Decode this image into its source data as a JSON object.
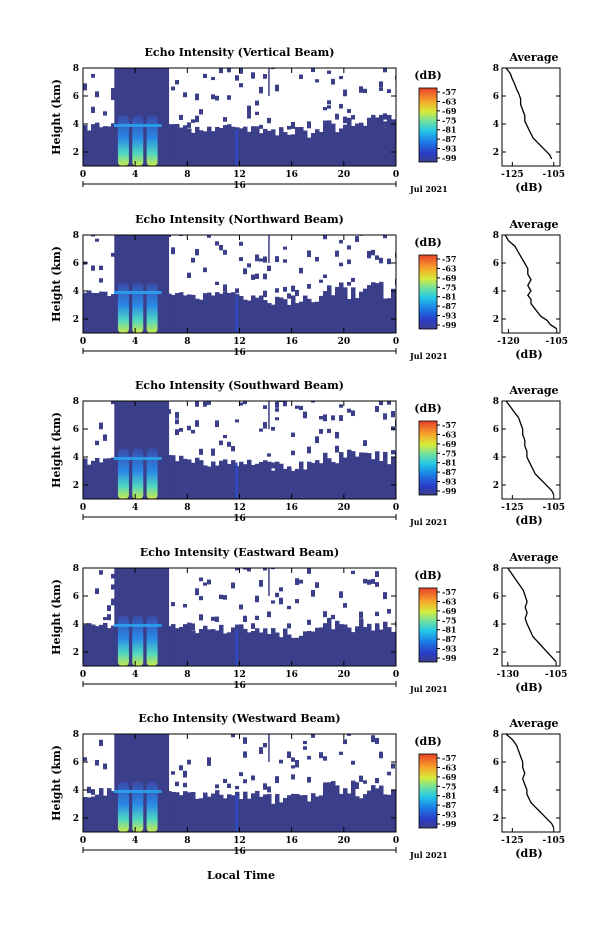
{
  "figure": {
    "date_label": "Jul 2021",
    "xlabel": "Local Time",
    "day_label": "16",
    "avg_title": "Average",
    "avg_xlabel": "(dB)",
    "cbar_unit": "(dB)"
  },
  "chart_data": [
    {
      "type": "heatmap",
      "title": "Echo Intensity (Vertical Beam)",
      "ylabel": "Height (km)",
      "x_ticks": [
        "0",
        "4",
        "8",
        "12",
        "16",
        "20",
        "0"
      ],
      "y_ticks": [
        "2",
        "4",
        "6",
        "8"
      ],
      "xlim": [
        0,
        24
      ],
      "ylim": [
        1,
        8
      ],
      "colorbar_ticks": [
        "-57",
        "-63",
        "-69",
        "-75",
        "-81",
        "-87",
        "-93",
        "-99"
      ],
      "profile": {
        "title": "Average",
        "x_ticks": [
          "-125",
          "-105"
        ],
        "xlim": [
          -130,
          -102
        ],
        "y_ticks": [
          "2",
          "4",
          "6",
          "8"
        ],
        "ylim": [
          1,
          8
        ],
        "x": [
          -128,
          -126,
          -125,
          -124,
          -123,
          -122,
          -121,
          -121,
          -120,
          -119,
          -119,
          -118,
          -117,
          -116,
          -115,
          -113,
          -111,
          -109,
          -107,
          -106
        ],
        "y": [
          8.0,
          7.6,
          7.2,
          6.9,
          6.5,
          6.2,
          5.8,
          5.4,
          5.0,
          4.6,
          4.2,
          3.9,
          3.6,
          3.3,
          3.0,
          2.7,
          2.4,
          2.1,
          1.8,
          1.5
        ]
      }
    },
    {
      "type": "heatmap",
      "title": "Echo Intensity (Northward Beam)",
      "ylabel": "Height (km)",
      "x_ticks": [
        "0",
        "4",
        "8",
        "12",
        "16",
        "20",
        "0"
      ],
      "y_ticks": [
        "2",
        "4",
        "6",
        "8"
      ],
      "xlim": [
        0,
        24
      ],
      "ylim": [
        1,
        8
      ],
      "colorbar_ticks": [
        "-57",
        "-63",
        "-69",
        "-75",
        "-81",
        "-87",
        "-93",
        "-99"
      ],
      "profile": {
        "title": "Average",
        "x_ticks": [
          "-120",
          "-105"
        ],
        "xlim": [
          -122,
          -104
        ],
        "y_ticks": [
          "2",
          "4",
          "6",
          "8"
        ],
        "ylim": [
          1,
          8
        ],
        "x": [
          -121,
          -120,
          -118,
          -117,
          -116,
          -115,
          -114,
          -114,
          -113,
          -114,
          -113,
          -114,
          -113,
          -113,
          -112,
          -111,
          -110,
          -108,
          -107,
          -105
        ],
        "y": [
          8.0,
          7.6,
          7.2,
          6.8,
          6.4,
          6.0,
          5.6,
          5.2,
          4.8,
          4.4,
          4.0,
          3.7,
          3.4,
          3.1,
          2.8,
          2.5,
          2.2,
          1.9,
          1.6,
          1.3
        ]
      }
    },
    {
      "type": "heatmap",
      "title": "Echo Intensity (Southward Beam)",
      "ylabel": "Height (km)",
      "x_ticks": [
        "0",
        "4",
        "8",
        "12",
        "16",
        "20",
        "0"
      ],
      "y_ticks": [
        "2",
        "4",
        "6",
        "8"
      ],
      "xlim": [
        0,
        24
      ],
      "ylim": [
        1,
        8
      ],
      "colorbar_ticks": [
        "-57",
        "-63",
        "-69",
        "-75",
        "-81",
        "-87",
        "-93",
        "-99"
      ],
      "profile": {
        "title": "Average",
        "x_ticks": [
          "-125",
          "-105"
        ],
        "xlim": [
          -130,
          -102
        ],
        "y_ticks": [
          "2",
          "4",
          "6",
          "8"
        ],
        "ylim": [
          1,
          8
        ],
        "x": [
          -128,
          -126,
          -124,
          -122,
          -121,
          -120,
          -120,
          -119,
          -119,
          -118,
          -118,
          -117,
          -116,
          -115,
          -114,
          -112,
          -110,
          -108,
          -106,
          -105
        ],
        "y": [
          8.0,
          7.6,
          7.2,
          6.8,
          6.4,
          6.0,
          5.6,
          5.2,
          4.8,
          4.4,
          4.0,
          3.7,
          3.4,
          3.1,
          2.8,
          2.5,
          2.2,
          1.9,
          1.6,
          1.3
        ]
      }
    },
    {
      "type": "heatmap",
      "title": "Echo Intensity (Eastward Beam)",
      "ylabel": "Height (km)",
      "x_ticks": [
        "0",
        "4",
        "8",
        "12",
        "16",
        "20",
        "0"
      ],
      "y_ticks": [
        "2",
        "4",
        "6",
        "8"
      ],
      "xlim": [
        0,
        24
      ],
      "ylim": [
        1,
        8
      ],
      "colorbar_ticks": [
        "-57",
        "-63",
        "-69",
        "-75",
        "-81",
        "-87",
        "-93",
        "-99"
      ],
      "profile": {
        "title": "Average",
        "x_ticks": [
          "-130",
          "-105"
        ],
        "xlim": [
          -133,
          -103
        ],
        "y_ticks": [
          "2",
          "4",
          "6",
          "8"
        ],
        "ylim": [
          1,
          8
        ],
        "x": [
          -130,
          -128,
          -126,
          -124,
          -122,
          -121,
          -120,
          -121,
          -120,
          -121,
          -120,
          -119,
          -118,
          -117,
          -115,
          -113,
          -111,
          -109,
          -107,
          -105
        ],
        "y": [
          8.0,
          7.6,
          7.2,
          6.8,
          6.4,
          6.0,
          5.6,
          5.2,
          4.8,
          4.4,
          4.0,
          3.7,
          3.4,
          3.1,
          2.8,
          2.5,
          2.2,
          1.9,
          1.6,
          1.3
        ]
      }
    },
    {
      "type": "heatmap",
      "title": "Echo Intensity (Westward Beam)",
      "ylabel": "Height (km)",
      "x_ticks": [
        "0",
        "4",
        "8",
        "12",
        "16",
        "20",
        "0"
      ],
      "y_ticks": [
        "2",
        "4",
        "6",
        "8"
      ],
      "xlim": [
        0,
        24
      ],
      "ylim": [
        1,
        8
      ],
      "colorbar_ticks": [
        "-57",
        "-63",
        "-69",
        "-75",
        "-81",
        "-87",
        "-93",
        "-99"
      ],
      "profile": {
        "title": "Average",
        "x_ticks": [
          "-125",
          "-105"
        ],
        "xlim": [
          -130,
          -102
        ],
        "y_ticks": [
          "2",
          "4",
          "6",
          "8"
        ],
        "ylim": [
          1,
          8
        ],
        "x": [
          -128,
          -125,
          -123,
          -122,
          -121,
          -120,
          -120,
          -119,
          -120,
          -119,
          -118,
          -118,
          -117,
          -116,
          -114,
          -112,
          -110,
          -108,
          -106,
          -105
        ],
        "y": [
          8.0,
          7.6,
          7.2,
          6.8,
          6.4,
          6.0,
          5.6,
          5.2,
          4.8,
          4.4,
          4.0,
          3.7,
          3.4,
          3.1,
          2.8,
          2.5,
          2.2,
          1.9,
          1.6,
          1.3
        ]
      }
    }
  ]
}
